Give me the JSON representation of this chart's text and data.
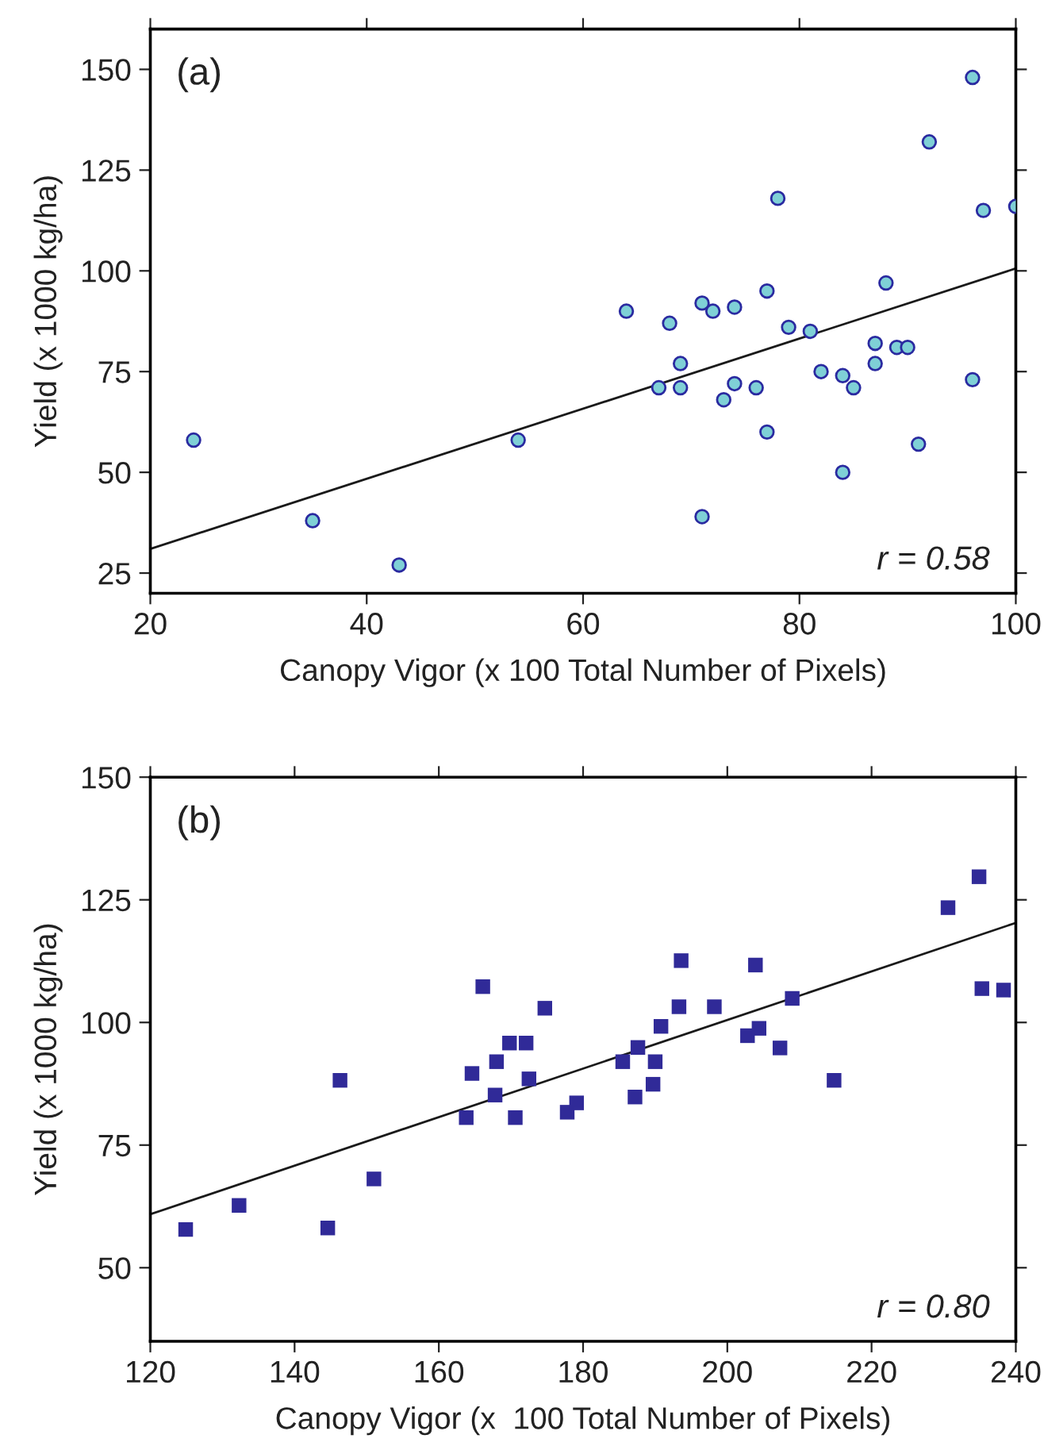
{
  "chart_data": [
    {
      "type": "scatter",
      "title": "(a)",
      "xlabel": "Canopy Vigor (x 100 Total Number of Pixels)",
      "ylabel": "Yield (x 1000 kg/ha)",
      "annotations": [
        "r = 0.58"
      ],
      "xlim": [
        20,
        100
      ],
      "xticks": [
        20,
        40,
        60,
        80,
        100
      ],
      "ylim": [
        20,
        160
      ],
      "yticks": [
        25,
        50,
        75,
        100,
        125,
        150
      ],
      "grid": false,
      "legend": false,
      "series": [
        {
          "marker": "circle",
          "color": "#7fd0d6",
          "x": [
            24,
            35,
            43,
            54,
            64,
            67,
            68,
            69,
            69,
            71,
            71,
            72,
            73,
            74,
            74,
            76,
            77,
            77,
            78,
            79,
            81,
            82,
            84,
            84,
            85,
            87,
            87,
            88,
            89,
            90,
            91,
            92,
            96,
            96,
            97,
            100
          ],
          "values": [
            58,
            38,
            27,
            58,
            90,
            71,
            87,
            77,
            71,
            92,
            39,
            90,
            68,
            91,
            72,
            71,
            95,
            60,
            118,
            86,
            85,
            75,
            74,
            50,
            71,
            82,
            77,
            97,
            81,
            81,
            57,
            132,
            148,
            73,
            115,
            116
          ]
        },
        {
          "type": "line",
          "marker": "none",
          "line_style": "solid",
          "color": "#1a1a1a",
          "x": [
            20,
            100
          ],
          "values": [
            31,
            100.6
          ]
        }
      ]
    },
    {
      "type": "scatter",
      "title": "(b)",
      "xlabel": "Canopy Vigor (x  100 Total Number of Pixels)",
      "ylabel": "Yield (x 1000 kg/ha)",
      "annotations": [
        "r = 0.80"
      ],
      "xlim": [
        120,
        240
      ],
      "xticks": [
        120,
        140,
        160,
        180,
        200,
        220,
        240
      ],
      "ylim": [
        35,
        150
      ],
      "yticks": [
        50,
        75,
        100,
        125,
        150
      ],
      "grid": false,
      "legend": false,
      "series": [
        {
          "marker": "square",
          "color": "#302a98",
          "x": [
            124.9,
            132.3,
            144.6,
            146.3,
            151.0,
            163.8,
            164.6,
            166.1,
            167.8,
            168.0,
            169.8,
            170.6,
            172.1,
            172.5,
            174.7,
            177.8,
            179.1,
            185.5,
            187.2,
            187.6,
            189.7,
            190.0,
            190.8,
            193.3,
            193.6,
            198.2,
            202.8,
            203.9,
            204.4,
            207.3,
            209.0,
            214.8,
            230.6,
            234.9,
            235.3,
            238.3
          ],
          "values": [
            57.8,
            62.7,
            58.1,
            88.2,
            68.1,
            80.6,
            89.6,
            107.3,
            85.2,
            92.0,
            95.8,
            80.6,
            95.8,
            88.5,
            102.9,
            81.7,
            83.6,
            92.0,
            84.8,
            94.9,
            87.4,
            92.0,
            99.2,
            103.2,
            112.6,
            103.2,
            97.3,
            111.7,
            98.8,
            94.8,
            104.9,
            88.2,
            123.4,
            129.7,
            106.9,
            106.6
          ]
        },
        {
          "type": "line",
          "marker": "none",
          "line_style": "solid",
          "color": "#1a1a1a",
          "x": [
            120,
            240
          ],
          "values": [
            60.9,
            120.3
          ]
        }
      ]
    }
  ]
}
